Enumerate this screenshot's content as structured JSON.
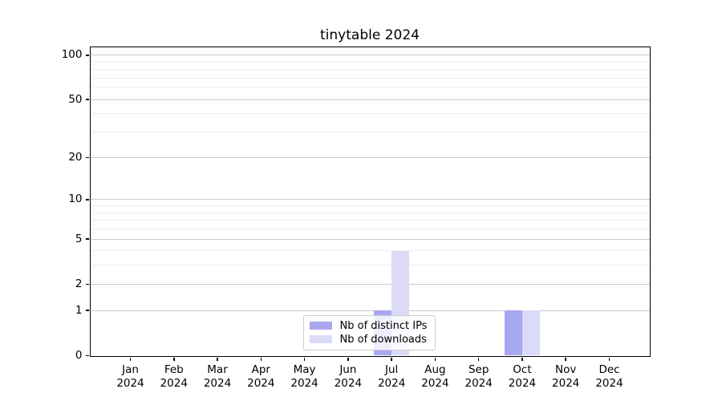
{
  "chart_data": {
    "type": "bar",
    "title": "tinytable 2024",
    "year_label": "2024",
    "categories": [
      "Jan",
      "Feb",
      "Mar",
      "Apr",
      "May",
      "Jun",
      "Jul",
      "Aug",
      "Sep",
      "Oct",
      "Nov",
      "Dec"
    ],
    "series": [
      {
        "name": "Nb of distinct IPs",
        "color": "#a8a8f0",
        "values": [
          0,
          0,
          0,
          0,
          0,
          0,
          1,
          0,
          0,
          1,
          0,
          0
        ]
      },
      {
        "name": "Nb of downloads",
        "color": "#dbdbf7",
        "values": [
          0,
          0,
          0,
          0,
          0,
          0,
          4,
          0,
          0,
          1,
          0,
          0
        ]
      }
    ],
    "xlabel": "",
    "ylabel": "",
    "yscale": "log1p",
    "ylim": [
      0,
      113.6
    ],
    "yticks": [
      100,
      50,
      20,
      10,
      5,
      2,
      1,
      0
    ],
    "yticks_minor": [
      90,
      80,
      70,
      60,
      40,
      30,
      9,
      8,
      7,
      6,
      4,
      3
    ],
    "grid": true,
    "legend_position": "lower center",
    "colors": {
      "major_grid": "#c9c9c9",
      "minor_grid": "#ededed",
      "axis": "#000000",
      "legend_border": "#cccccc",
      "legend_bg": "rgba(255,255,255,0.8)"
    }
  }
}
